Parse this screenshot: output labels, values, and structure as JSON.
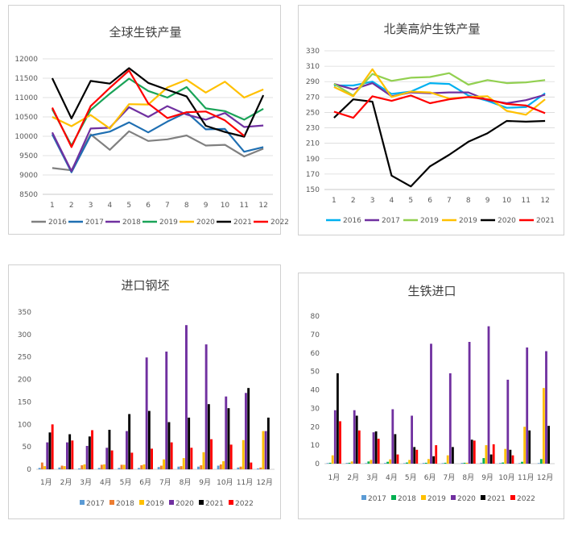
{
  "chart_data": [
    {
      "type": "line",
      "title": "全球生铁产量",
      "x": [
        "1",
        "2",
        "3",
        "4",
        "5",
        "6",
        "7",
        "8",
        "9",
        "10",
        "11",
        "12"
      ],
      "ylim": [
        8500,
        12000
      ],
      "yticks": [
        "8500",
        "9000",
        "9500",
        "10000",
        "10500",
        "11000",
        "11500",
        "12000"
      ],
      "grid": true,
      "legend": "bottom",
      "series": [
        {
          "name": "2016",
          "color": "#808080",
          "values": [
            9180,
            9120,
            10050,
            9650,
            10130,
            9880,
            9920,
            10020,
            9760,
            9780,
            9480,
            9680
          ]
        },
        {
          "name": "2017",
          "color": "#1f6fb2",
          "values": [
            10050,
            9070,
            10020,
            10120,
            10360,
            10100,
            10380,
            10620,
            10180,
            10190,
            9600,
            9720
          ]
        },
        {
          "name": "2018",
          "color": "#7030a0",
          "values": [
            10100,
            9100,
            10200,
            10220,
            10750,
            10500,
            10780,
            10560,
            10430,
            10600,
            10240,
            10280
          ]
        },
        {
          "name": "2019",
          "color": "#1aa358",
          "values": [
            10700,
            9760,
            10680,
            11100,
            11490,
            11170,
            11000,
            11270,
            10720,
            10650,
            10430,
            10710
          ]
        },
        {
          "name": "2020",
          "color": "#ffc000",
          "values": [
            10500,
            10260,
            10550,
            10200,
            10830,
            10820,
            11260,
            11460,
            11130,
            11410,
            11000,
            11210
          ]
        },
        {
          "name": "2021",
          "color": "#000000",
          "values": [
            11500,
            10460,
            11430,
            11360,
            11760,
            11380,
            11200,
            11030,
            10270,
            10110,
            9990,
            11060
          ]
        },
        {
          "name": "2022",
          "color": "#ff0000",
          "values": [
            10740,
            9720,
            10780,
            11250,
            11700,
            10850,
            10470,
            10620,
            10640,
            10410,
            10010,
            null
          ]
        }
      ]
    },
    {
      "type": "line",
      "title": "北美高炉生铁产量",
      "x": [
        "1",
        "2",
        "3",
        "4",
        "5",
        "6",
        "7",
        "8",
        "9",
        "10",
        "11",
        "12"
      ],
      "ylim": [
        150,
        330
      ],
      "yticks": [
        "150",
        "170",
        "190",
        "210",
        "230",
        "250",
        "270",
        "290",
        "310",
        "330"
      ],
      "grid": true,
      "legend": "bottom",
      "series": [
        {
          "name": "2016",
          "color": "#00b0f0",
          "values": [
            285,
            285,
            290,
            274,
            277,
            288,
            287,
            272,
            265,
            256,
            257,
            275
          ]
        },
        {
          "name": "2017",
          "color": "#7030a0",
          "values": [
            287,
            280,
            288,
            271,
            276,
            275,
            276,
            276,
            266,
            262,
            266,
            273
          ]
        },
        {
          "name": "2019",
          "color": "#92d050",
          "values": [
            287,
            272,
            300,
            291,
            295,
            296,
            301,
            286,
            292,
            288,
            289,
            292
          ]
        },
        {
          "name": "2019",
          "color": "#ffc000",
          "values": [
            283,
            271,
            306,
            270,
            277,
            276,
            268,
            270,
            271,
            252,
            247,
            267
          ]
        },
        {
          "name": "2020",
          "color": "#000000",
          "values": [
            243,
            267,
            264,
            168,
            154,
            180,
            195,
            212,
            223,
            239,
            238,
            239
          ]
        },
        {
          "name": "2021",
          "color": "#ff0000",
          "values": [
            251,
            243,
            271,
            265,
            272,
            262,
            267,
            270,
            267,
            261,
            259,
            249
          ]
        }
      ]
    },
    {
      "type": "bar",
      "title": "进口钢坯",
      "categories": [
        "1月",
        "2月",
        "3月",
        "4月",
        "5月",
        "6月",
        "7月",
        "8月",
        "9月",
        "10月",
        "11月",
        "12月"
      ],
      "ylim": [
        0,
        350
      ],
      "yticks": [
        "0",
        "50",
        "100",
        "150",
        "200",
        "250",
        "300",
        "350"
      ],
      "grid": false,
      "legend": "bottom",
      "series": [
        {
          "name": "2017",
          "color": "#5b9bd5",
          "values": [
            3,
            4,
            2,
            3,
            3,
            3,
            5,
            6,
            6,
            8,
            4,
            2
          ]
        },
        {
          "name": "2018",
          "color": "#ed7d31",
          "values": [
            15,
            8,
            9,
            10,
            10,
            9,
            8,
            7,
            9,
            11,
            6,
            4
          ]
        },
        {
          "name": "2019",
          "color": "#ffc000",
          "values": [
            7,
            7,
            11,
            11,
            10,
            11,
            22,
            25,
            38,
            18,
            65,
            85
          ]
        },
        {
          "name": "2020",
          "color": "#7030a0",
          "values": [
            60,
            60,
            52,
            48,
            85,
            249,
            262,
            321,
            278,
            162,
            170,
            85
          ]
        },
        {
          "name": "2021",
          "color": "#000000",
          "values": [
            82,
            78,
            73,
            88,
            123,
            130,
            105,
            115,
            145,
            136,
            181,
            115
          ]
        },
        {
          "name": "2022",
          "color": "#ff0000",
          "values": [
            100,
            64,
            87,
            42,
            37,
            46,
            60,
            48,
            67,
            55,
            15,
            null
          ]
        }
      ]
    },
    {
      "type": "bar",
      "title": "生铁进口",
      "categories": [
        "1月",
        "2月",
        "3月",
        "4月",
        "5月",
        "6月",
        "7月",
        "8月",
        "9月",
        "10月",
        "11月",
        "12月"
      ],
      "ylim": [
        0,
        80
      ],
      "yticks": [
        "0",
        "10",
        "20",
        "30",
        "40",
        "50",
        "60",
        "70",
        "80"
      ],
      "grid": false,
      "legend": "bottom",
      "series": [
        {
          "name": "2017",
          "color": "#5b9bd5",
          "values": [
            0.3,
            0.4,
            0.3,
            0.4,
            0.3,
            0.4,
            0.3,
            0.4,
            0.5,
            0.4,
            0.3,
            0.3
          ]
        },
        {
          "name": "2018",
          "color": "#00b050",
          "values": [
            0.5,
            0.5,
            1.2,
            1.0,
            0.6,
            0.5,
            0.5,
            0.5,
            3.0,
            0.6,
            1.0,
            2.5
          ]
        },
        {
          "name": "2019",
          "color": "#ffc000",
          "values": [
            4.5,
            1.2,
            2.0,
            2.3,
            2.0,
            2.5,
            4.5,
            0.5,
            10.0,
            8.0,
            20.0,
            41.0
          ]
        },
        {
          "name": "2020",
          "color": "#7030a0",
          "values": [
            29,
            29,
            17,
            29.5,
            26,
            65,
            49,
            66,
            74.5,
            45.5,
            63,
            61
          ]
        },
        {
          "name": "2021",
          "color": "#000000",
          "values": [
            49,
            26,
            17.5,
            16,
            9,
            4,
            9,
            13,
            5,
            7.5,
            18,
            20.5
          ]
        },
        {
          "name": "2022",
          "color": "#ff0000",
          "values": [
            23,
            18,
            13.5,
            5,
            7.5,
            10,
            0,
            12.5,
            10.5,
            4.5,
            0,
            null
          ]
        }
      ]
    }
  ]
}
